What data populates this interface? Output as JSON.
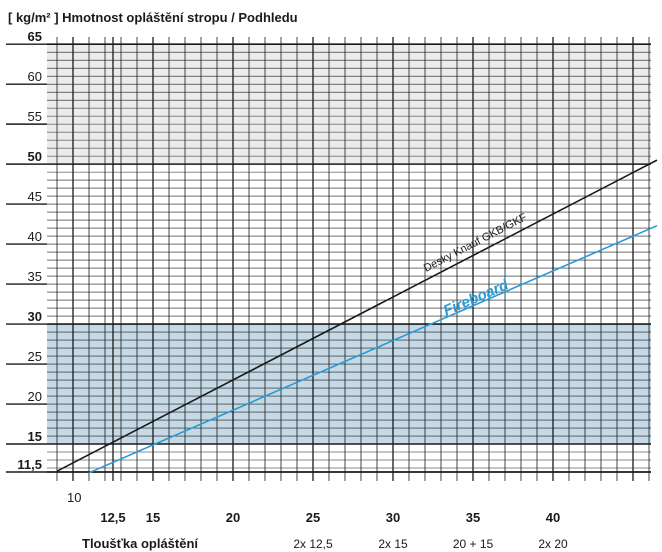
{
  "chart_data": {
    "type": "line",
    "title": "[ kg/m² ]  Hmotnost opláštění stropu / Podhledu",
    "xlabel": "Tloušťka opláštění",
    "ylabel": "[ kg/m² ]",
    "xlim": [
      9,
      46.5
    ],
    "ylim": [
      11.5,
      65
    ],
    "x_ticks": [
      {
        "value": 10,
        "label": "10"
      },
      {
        "value": 12.5,
        "label": "12,5"
      },
      {
        "value": 15,
        "label": "15"
      },
      {
        "value": 20,
        "label": "20"
      },
      {
        "value": 25,
        "label": "25"
      },
      {
        "value": 30,
        "label": "30"
      },
      {
        "value": 35,
        "label": "35"
      },
      {
        "value": 40,
        "label": "40"
      }
    ],
    "x_combo_labels": [
      {
        "value": 25,
        "label": "2x 12,5"
      },
      {
        "value": 30,
        "label": "2x 15"
      },
      {
        "value": 35,
        "label": "20 + 15"
      },
      {
        "value": 40,
        "label": "2x 20"
      }
    ],
    "y_ticks": [
      {
        "value": 11.5,
        "label": "11,5",
        "bold": true
      },
      {
        "value": 15,
        "label": "15",
        "bold": true
      },
      {
        "value": 20,
        "label": "20",
        "bold": false
      },
      {
        "value": 25,
        "label": "25",
        "bold": false
      },
      {
        "value": 30,
        "label": "30",
        "bold": true
      },
      {
        "value": 35,
        "label": "35",
        "bold": false
      },
      {
        "value": 40,
        "label": "40",
        "bold": false
      },
      {
        "value": 45,
        "label": "45",
        "bold": false
      },
      {
        "value": 50,
        "label": "50",
        "bold": true
      },
      {
        "value": 55,
        "label": "55",
        "bold": false
      },
      {
        "value": 60,
        "label": "60",
        "bold": false
      },
      {
        "value": 65,
        "label": "65",
        "bold": true
      }
    ],
    "bands": [
      {
        "from": 15,
        "to": 30,
        "color": "#c5d9e6"
      },
      {
        "from": 50,
        "to": 65,
        "color": "#ececec"
      }
    ],
    "grid": true,
    "series": [
      {
        "name": "Desky Knauf GKB/GKF",
        "color": "#1a1a1a",
        "x": [
          9,
          46.5
        ],
        "y": [
          11.6,
          50.5
        ]
      },
      {
        "name": "Fireboard",
        "color": "#2a9ad6",
        "x": [
          11,
          46.5
        ],
        "y": [
          11.4,
          42.3
        ]
      }
    ]
  }
}
